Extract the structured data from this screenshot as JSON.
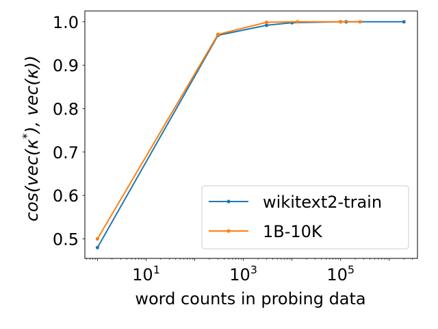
{
  "chart_data": {
    "type": "line",
    "xlabel": "word counts in probing data",
    "ylabel_parts": [
      "cos(vec(",
      "κ",
      "*",
      "), vec(",
      "κ",
      "))"
    ],
    "xscale": "log",
    "xlim": [
      0.55,
      3800000
    ],
    "ylim": [
      0.455,
      1.025
    ],
    "x_tick_labels": [
      {
        "base": "10",
        "exp": "1",
        "value": 10
      },
      {
        "base": "10",
        "exp": "3",
        "value": 1000
      },
      {
        "base": "10",
        "exp": "5",
        "value": 100000
      }
    ],
    "y_ticks": [
      0.5,
      0.6,
      0.7,
      0.8,
      0.9,
      1.0
    ],
    "y_tick_labels": [
      "0.5",
      "0.6",
      "0.7",
      "0.8",
      "0.9",
      "1.0"
    ],
    "grid": false,
    "legend_position": "lower-right",
    "series": [
      {
        "name": "wikitext2-train",
        "color": "#1f77b4",
        "x": [
          1,
          300,
          3000,
          10000,
          100000,
          130000,
          2000000
        ],
        "y": [
          0.48,
          0.969,
          0.992,
          0.998,
          1.0,
          1.0,
          1.0
        ]
      },
      {
        "name": "1B-10K",
        "color": "#ff7f0e",
        "x": [
          1,
          300,
          3000,
          13000,
          100000,
          250000
        ],
        "y": [
          0.5,
          0.971,
          0.999,
          1.0,
          1.0,
          1.0
        ]
      }
    ]
  }
}
